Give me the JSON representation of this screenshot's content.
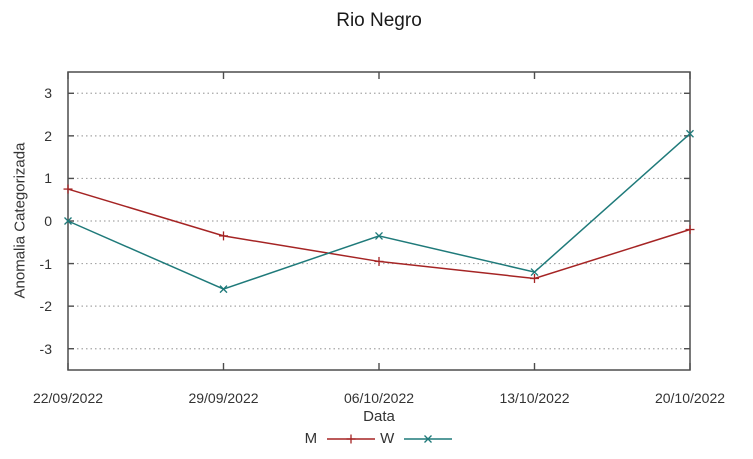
{
  "chart_data": {
    "type": "line",
    "title": "Rio Negro",
    "xlabel": "Data",
    "ylabel": "Anomalia Categorizada",
    "categories": [
      "22/09/2022",
      "29/09/2022",
      "06/10/2022",
      "13/10/2022",
      "20/10/2022"
    ],
    "series": [
      {
        "name": "M",
        "color": "#a52424",
        "marker": "plus",
        "values": [
          0.75,
          -0.35,
          -0.95,
          -1.35,
          -0.2
        ]
      },
      {
        "name": "W",
        "color": "#1f7a7a",
        "marker": "cross",
        "values": [
          0.0,
          -1.6,
          -0.35,
          -1.2,
          2.05
        ]
      }
    ],
    "ylim": [
      -3.5,
      3.5
    ],
    "yticks": [
      -3,
      -2,
      -1,
      0,
      1,
      2,
      3
    ],
    "grid": "horizontal-dotted",
    "legend_position": "bottom-center"
  },
  "colors": {
    "axis_border": "#4d4d4d",
    "grid": "#a6a6a6",
    "tick_text": "#333333",
    "background": "#ffffff"
  }
}
